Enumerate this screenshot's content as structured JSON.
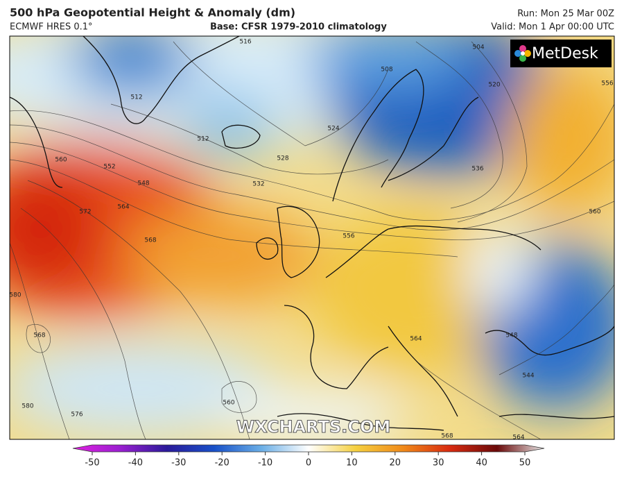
{
  "header": {
    "title": "500 hPa Geopotential Height & Anomaly (dm)",
    "model": "ECMWF HRES 0.1°",
    "base": "Base: CFSR 1979-2010 climatology",
    "run": "Run: Mon 25 Mar 00Z",
    "valid": "Valid: Mon 1 Apr 00:00 UTC"
  },
  "logo": "MetDesk",
  "watermark": "WXCHARTS.COM",
  "contour_labels": [
    "516",
    "512",
    "512",
    "508",
    "504",
    "520",
    "556",
    "524",
    "528",
    "532",
    "536",
    "560",
    "552",
    "548",
    "564",
    "572",
    "568",
    "580",
    "568",
    "576",
    "580",
    "560",
    "556",
    "548",
    "544",
    "564",
    "560",
    "564",
    "568"
  ],
  "colorbar": {
    "ticks": [
      -50,
      -40,
      -30,
      -20,
      -10,
      0,
      10,
      20,
      30,
      40,
      50
    ]
  }
}
